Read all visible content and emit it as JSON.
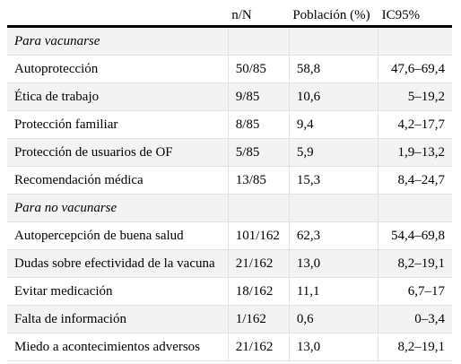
{
  "header": {
    "col1": "",
    "col2": "n/N",
    "col3": "Población (%)",
    "col4": "IC95%"
  },
  "rows": [
    {
      "label": "Para vacunarse",
      "n": "",
      "pop": "",
      "ci": "",
      "section": true
    },
    {
      "label": "Autoprotección",
      "n": "50/85",
      "pop": "58,8",
      "ci": "47,6–69,4"
    },
    {
      "label": "Ética de trabajo",
      "n": "9/85",
      "pop": "10,6",
      "ci": "5–19,2"
    },
    {
      "label": "Protección familiar",
      "n": "8/85",
      "pop": "9,4",
      "ci": "4,2–17,7"
    },
    {
      "label": "Protección de usuarios de OF",
      "n": "5/85",
      "pop": "5,9",
      "ci": "1,9–13,2"
    },
    {
      "label": "Recomendación médica",
      "n": "13/85",
      "pop": "15,3",
      "ci": "8,4–24,7"
    },
    {
      "label": "Para no vacunarse",
      "n": "",
      "pop": "",
      "ci": "",
      "section": true
    },
    {
      "label": "Autopercepción de buena salud",
      "n": "101/162",
      "pop": "62,3",
      "ci": "54,4–69,8"
    },
    {
      "label": "Dudas sobre efectividad de la vacuna",
      "n": "21/162",
      "pop": "13,0",
      "ci": "8,2–19,1"
    },
    {
      "label": "Evitar medicación",
      "n": "18/162",
      "pop": "11,1",
      "ci": "6,7–17"
    },
    {
      "label": "Falta de información",
      "n": "1/162",
      "pop": "0,6",
      "ci": "0–3,4"
    },
    {
      "label": "Miedo a acontecimientos adversos",
      "n": "21/162",
      "pop": "13,0",
      "ci": "8,2–19,1"
    }
  ]
}
